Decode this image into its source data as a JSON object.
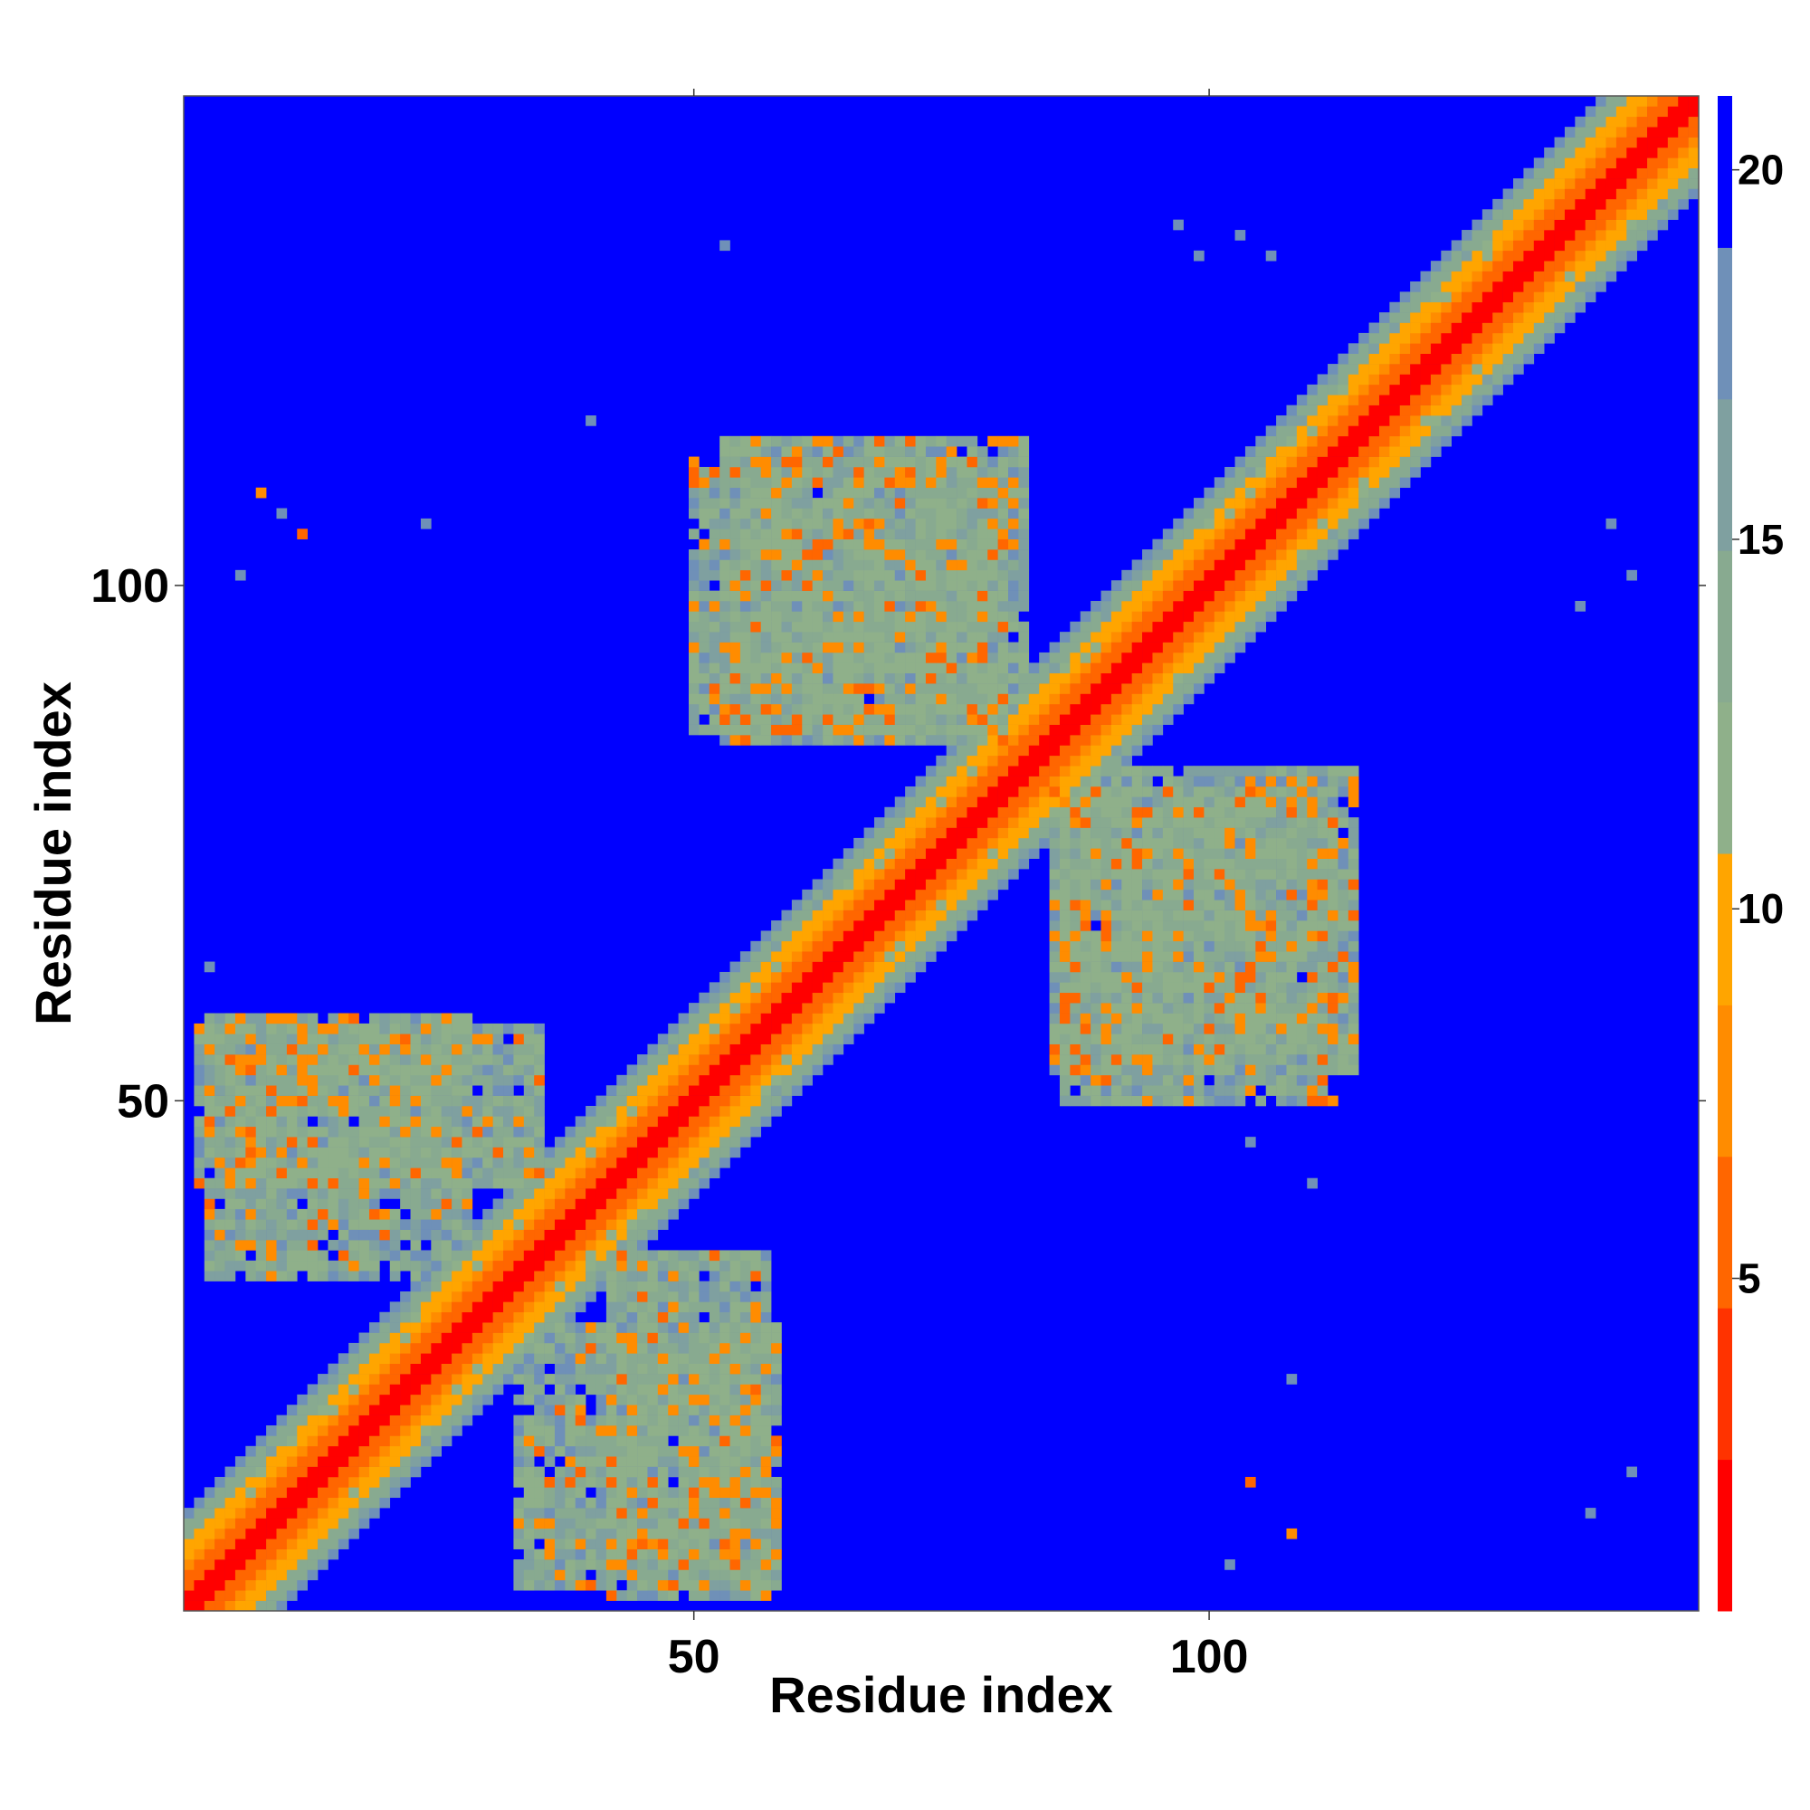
{
  "chart_data": {
    "type": "heatmap",
    "title": "",
    "xlabel": "Residue index",
    "ylabel": "Residue index",
    "xlim": [
      1,
      147
    ],
    "ylim": [
      1,
      147
    ],
    "n_residues": 147,
    "x_ticks": [
      50,
      100
    ],
    "y_ticks": [
      50,
      100
    ],
    "colorbar": {
      "range": [
        0.5,
        21
      ],
      "ticks": [
        5,
        10,
        15,
        20
      ],
      "colors": [
        "#ff0000",
        "#ff3300",
        "#ff6600",
        "#ff8c00",
        "#ffa500",
        "#8fb08a",
        "#88aa90",
        "#7fa0a0",
        "#6f90b8",
        "#0000ff"
      ]
    },
    "background_value": 21,
    "diagonal_bands": [
      {
        "max_offset": 1,
        "value": 1
      },
      {
        "max_offset": 3,
        "value": 5
      },
      {
        "max_offset": 4,
        "value": 7
      },
      {
        "max_offset": 6,
        "value": 10
      },
      {
        "max_offset": 8,
        "value": 14
      },
      {
        "max_offset": 9,
        "value": 17
      }
    ],
    "contact_regions": [
      {
        "name": "lower-left lobe",
        "x_range": [
          2,
          35
        ],
        "y_range": [
          42,
          57
        ],
        "value": 14
      },
      {
        "name": "lower-center lobe",
        "x_range": [
          33,
          58
        ],
        "y_range": [
          3,
          28
        ],
        "value": 14
      },
      {
        "name": "upper-center lobe",
        "x_range": [
          50,
          80
        ],
        "y_range": [
          86,
          112
        ],
        "value": 14
      },
      {
        "name": "middle-right lobe",
        "x_range": [
          85,
          114
        ],
        "y_range": [
          53,
          82
        ],
        "value": 14
      }
    ],
    "isolated_contacts": [
      {
        "x": 8,
        "y": 109,
        "value": 7
      },
      {
        "x": 12,
        "y": 105,
        "value": 6
      },
      {
        "x": 104,
        "y": 13,
        "value": 6
      },
      {
        "x": 108,
        "y": 8,
        "value": 7
      },
      {
        "x": 6,
        "y": 101,
        "value": 17
      },
      {
        "x": 10,
        "y": 107,
        "value": 17
      },
      {
        "x": 24,
        "y": 106,
        "value": 17
      },
      {
        "x": 40,
        "y": 116,
        "value": 17
      },
      {
        "x": 53,
        "y": 133,
        "value": 17
      },
      {
        "x": 97,
        "y": 135,
        "value": 17
      },
      {
        "x": 99,
        "y": 132,
        "value": 17
      },
      {
        "x": 103,
        "y": 134,
        "value": 17
      },
      {
        "x": 106,
        "y": 132,
        "value": 17
      },
      {
        "x": 139,
        "y": 106,
        "value": 17
      },
      {
        "x": 141,
        "y": 101,
        "value": 17
      },
      {
        "x": 136,
        "y": 98,
        "value": 17
      },
      {
        "x": 137,
        "y": 10,
        "value": 17
      },
      {
        "x": 141,
        "y": 14,
        "value": 17
      },
      {
        "x": 104,
        "y": 46,
        "value": 17
      },
      {
        "x": 110,
        "y": 42,
        "value": 17
      },
      {
        "x": 3,
        "y": 63,
        "value": 17
      },
      {
        "x": 102,
        "y": 5,
        "value": 17
      },
      {
        "x": 108,
        "y": 23,
        "value": 17
      }
    ]
  }
}
